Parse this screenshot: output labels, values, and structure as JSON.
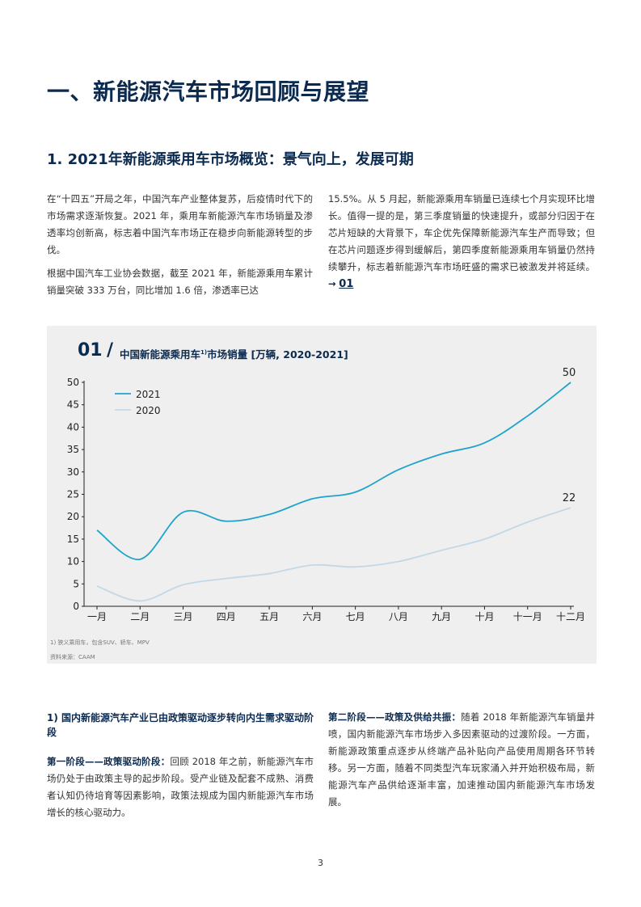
{
  "section_title": "一、新能源汽车市场回顾与展望",
  "subsection_title": "1.  2021年新能源乘用车市场概览：景气向上，发展可期",
  "intro": {
    "left_p1": "在“十四五”开局之年，中国汽车产业整体复苏，后疫情时代下的市场需求逐渐恢复。2021 年，乘用车新能源汽车市场销量及渗透率均创新高，标志着中国汽车市场正在稳步向新能源转型的步伐。",
    "left_p2": "根据中国汽车工业协会数据，截至 2021 年，新能源乘用车累计销量突破 333 万台，同比增加 1.6 倍，渗透率已达",
    "right_p1": "15.5%。从 5 月起，新能源乘用车销量已连续七个月实现环比增长。值得一提的是，第三季度销量的快速提升，或部分归因于在芯片短缺的大背景下，车企优先保障新能源汽车生产而导致；但在芯片问题逐步得到缓解后，第四季度新能源乘用车销量仍然持续攀升，标志着新能源汽车市场旺盛的需求已被激发并将延续。",
    "ref_arrow": "→",
    "ref_label": "01"
  },
  "figure": {
    "number": "01",
    "slash": "/",
    "title_pre": "中国新能源乘用车",
    "title_sup": "1)",
    "title_post": "市场销量 [万辆, 2020-2021]",
    "footnote": "1) 狭义乘用车，包含SUV、轿车、MPV",
    "source": "资料来源：CAAM"
  },
  "chart_data": {
    "type": "line",
    "title": "中国新能源乘用车市场销量 [万辆, 2020-2021]",
    "categories": [
      "一月",
      "二月",
      "三月",
      "四月",
      "五月",
      "六月",
      "七月",
      "八月",
      "九月",
      "十月",
      "十一月",
      "十二月"
    ],
    "series": [
      {
        "name": "2021",
        "color": "#1fa3cc",
        "values": [
          17,
          10.5,
          21,
          19,
          20.5,
          24,
          25.5,
          30.5,
          34,
          36.5,
          42.5,
          50
        ],
        "end_label": "50"
      },
      {
        "name": "2020",
        "color": "#c3d8e6",
        "values": [
          4.5,
          1.2,
          4.8,
          6.2,
          7.3,
          9.2,
          8.8,
          10,
          12.5,
          15,
          18.8,
          22
        ],
        "end_label": "22"
      }
    ],
    "yticks": [
      "0",
      "5",
      "10",
      "15",
      "20",
      "25",
      "30",
      "35",
      "40",
      "45",
      "50"
    ],
    "ylim": [
      0,
      50
    ],
    "legend_position": "top-left",
    "grid": false
  },
  "left_section": {
    "heading": "1) 国内新能源汽车产业已由政策驱动逐步转向内生需求驱动阶段",
    "stage_label": "第一阶段——政策驱动阶段：",
    "stage_text": "回顾 2018 年之前，新能源汽车市场仍处于由政策主导的起步阶段。受产业链及配套不成熟、消费者认知仍待培育等因素影响，政策法规成为国内新能源汽车市场增长的核心驱动力。"
  },
  "right_section": {
    "stage_label": "第二阶段——政策及供给共振：",
    "stage_text": "随着 2018 年新能源汽车销量井喷，国内新能源汽车市场步入多因素驱动的过渡阶段。一方面，新能源政策重点逐步从终端产品补贴向产品使用周期各环节转移。另一方面，随着不同类型汽车玩家涌入并开始积极布局，新能源汽车产品供给逐渐丰富，加速推动国内新能源汽车市场发展。"
  },
  "page_number": "3"
}
